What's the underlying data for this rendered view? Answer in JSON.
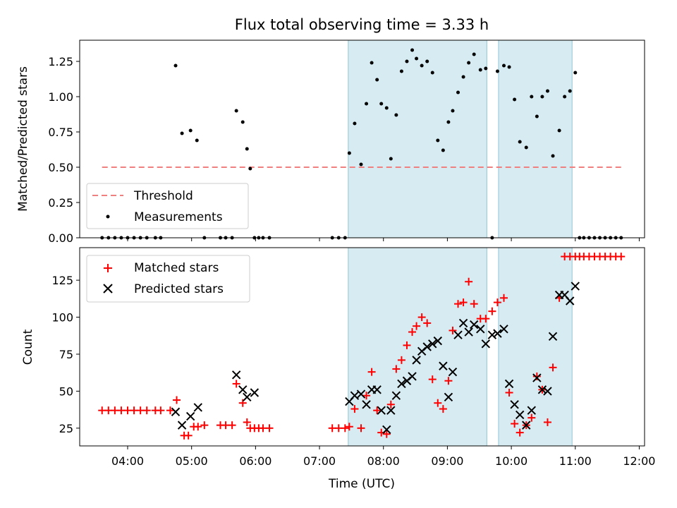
{
  "figure_title": "Flux total observing time = 3.33 h",
  "chart_data": [
    {
      "type": "scatter",
      "title": "Flux total observing time = 3.33 h",
      "ylabel": "Matched/Predicted stars",
      "xlim": [
        "03:15",
        "12:05"
      ],
      "ylim": [
        0,
        1.4
      ],
      "y_ticks": [
        0.0,
        0.25,
        0.5,
        0.75,
        1.0,
        1.25
      ],
      "y_tick_labels": [
        "0.00",
        "0.25",
        "0.50",
        "0.75",
        "1.00",
        "1.25"
      ],
      "shaded_intervals": [
        [
          "07:27",
          "09:37"
        ],
        [
          "09:48",
          "10:57"
        ]
      ],
      "legend": {
        "position": "lower left",
        "entries": [
          "Threshold",
          "Measurements"
        ]
      },
      "threshold": {
        "name": "Threshold",
        "value": 0.5,
        "x_range": [
          "03:36",
          "11:43"
        ],
        "color": "#f08080"
      },
      "series": [
        {
          "name": "Measurements",
          "color": "#000000",
          "x": [
            "03:36",
            "03:42",
            "03:48",
            "03:54",
            "04:00",
            "04:06",
            "04:12",
            "04:18",
            "04:26",
            "04:31",
            "04:45",
            "04:51",
            "04:59",
            "05:05",
            "05:12",
            "05:27",
            "05:32",
            "05:38",
            "05:42",
            "05:48",
            "05:52",
            "05:55",
            "05:59",
            "06:03",
            "06:07",
            "06:13",
            "07:12",
            "07:18",
            "07:24",
            "07:28",
            "07:33",
            "07:39",
            "07:44",
            "07:49",
            "07:54",
            "07:58",
            "08:03",
            "08:07",
            "08:12",
            "08:17",
            "08:22",
            "08:27",
            "08:31",
            "08:36",
            "08:41",
            "08:46",
            "08:51",
            "08:56",
            "09:01",
            "09:05",
            "09:10",
            "09:15",
            "09:20",
            "09:25",
            "09:31",
            "09:36",
            "09:42",
            "09:47",
            "09:53",
            "09:58",
            "10:03",
            "10:08",
            "10:14",
            "10:19",
            "10:24",
            "10:29",
            "10:34",
            "10:39",
            "10:45",
            "10:50",
            "10:55",
            "11:00",
            "11:04",
            "11:08",
            "11:13",
            "11:18",
            "11:23",
            "11:28",
            "11:33",
            "11:38",
            "11:43"
          ],
          "y": [
            0,
            0,
            0,
            0,
            0,
            0,
            0,
            0,
            0,
            0,
            1.22,
            0.74,
            0.76,
            0.69,
            0,
            0,
            0,
            0,
            0.9,
            0.82,
            0.63,
            0.49,
            0,
            0,
            0,
            0,
            0,
            0,
            0,
            0.6,
            0.81,
            0.52,
            0.95,
            1.24,
            1.12,
            0.95,
            0.92,
            0.56,
            0.87,
            1.18,
            1.25,
            1.33,
            1.27,
            1.22,
            1.25,
            1.17,
            0.69,
            0.62,
            0.82,
            0.9,
            1.03,
            1.14,
            1.24,
            1.3,
            1.19,
            1.2,
            0,
            1.18,
            1.22,
            1.21,
            0.98,
            0.68,
            0.64,
            1.0,
            0.86,
            1.0,
            1.04,
            0.58,
            0.76,
            1.0,
            1.04,
            1.17,
            0,
            0,
            0,
            0,
            0,
            0,
            0,
            0,
            0
          ]
        }
      ]
    },
    {
      "type": "scatter",
      "xlabel": "Time (UTC)",
      "ylabel": "Count",
      "xlim": [
        "03:15",
        "12:05"
      ],
      "ylim": [
        13,
        147
      ],
      "x_ticks": [
        "04:00",
        "05:00",
        "06:00",
        "07:00",
        "08:00",
        "09:00",
        "10:00",
        "11:00",
        "12:00"
      ],
      "y_ticks": [
        25,
        50,
        75,
        100,
        125
      ],
      "shaded_intervals": [
        [
          "07:27",
          "09:37"
        ],
        [
          "09:48",
          "10:57"
        ]
      ],
      "legend": {
        "position": "upper left",
        "entries": [
          "Matched stars",
          "Predicted stars"
        ]
      },
      "series": [
        {
          "name": "Matched stars",
          "marker": "+",
          "color": "#ff0000",
          "x": [
            "03:36",
            "03:42",
            "03:48",
            "03:54",
            "04:00",
            "04:06",
            "04:12",
            "04:18",
            "04:26",
            "04:31",
            "04:40",
            "04:46",
            "04:53",
            "04:57",
            "05:02",
            "05:06",
            "05:12",
            "05:27",
            "05:32",
            "05:38",
            "05:42",
            "05:48",
            "05:52",
            "05:55",
            "05:59",
            "06:03",
            "06:07",
            "06:13",
            "07:12",
            "07:18",
            "07:24",
            "07:28",
            "07:33",
            "07:39",
            "07:44",
            "07:49",
            "07:54",
            "07:58",
            "08:03",
            "08:07",
            "08:12",
            "08:17",
            "08:22",
            "08:27",
            "08:31",
            "08:36",
            "08:41",
            "08:46",
            "08:51",
            "08:56",
            "09:01",
            "09:05",
            "09:10",
            "09:15",
            "09:20",
            "09:25",
            "09:31",
            "09:36",
            "09:42",
            "09:47",
            "09:53",
            "09:58",
            "10:03",
            "10:08",
            "10:14",
            "10:19",
            "10:24",
            "10:29",
            "10:34",
            "10:39",
            "10:45",
            "10:50",
            "10:55",
            "11:00",
            "11:04",
            "11:08",
            "11:13",
            "11:18",
            "11:23",
            "11:28",
            "11:33",
            "11:38",
            "11:43"
          ],
          "y": [
            37,
            37,
            37,
            37,
            37,
            37,
            37,
            37,
            37,
            37,
            37,
            44,
            20,
            20,
            26,
            26,
            27,
            27,
            27,
            27,
            55,
            42,
            29,
            25,
            25,
            25,
            25,
            25,
            25,
            25,
            25,
            26,
            38,
            25,
            47,
            63,
            37,
            22,
            21,
            41,
            65,
            71,
            81,
            90,
            94,
            100,
            96,
            58,
            42,
            38,
            57,
            91,
            109,
            110,
            124,
            109,
            99,
            99,
            104,
            110,
            113,
            49,
            28,
            22,
            27,
            32,
            60,
            51,
            29,
            66,
            113,
            141,
            141,
            141,
            141,
            141,
            141,
            141,
            141,
            141,
            141,
            141,
            141
          ]
        },
        {
          "name": "Predicted stars",
          "marker": "x",
          "color": "#000000",
          "x": [
            "04:45",
            "04:51",
            "04:59",
            "05:06",
            "05:42",
            "05:48",
            "05:52",
            "05:59",
            "07:28",
            "07:33",
            "07:39",
            "07:44",
            "07:49",
            "07:54",
            "07:58",
            "08:03",
            "08:07",
            "08:12",
            "08:17",
            "08:22",
            "08:27",
            "08:31",
            "08:36",
            "08:41",
            "08:46",
            "08:51",
            "08:56",
            "09:01",
            "09:05",
            "09:10",
            "09:15",
            "09:20",
            "09:25",
            "09:31",
            "09:36",
            "09:42",
            "09:47",
            "09:53",
            "09:58",
            "10:03",
            "10:08",
            "10:14",
            "10:19",
            "10:24",
            "10:29",
            "10:34",
            "10:39",
            "10:45",
            "10:50",
            "10:55",
            "11:00"
          ],
          "y": [
            36,
            27,
            33,
            39,
            61,
            51,
            46,
            49,
            43,
            47,
            48,
            41,
            51,
            51,
            37,
            24,
            37,
            47,
            55,
            57,
            60,
            71,
            77,
            80,
            82,
            84,
            67,
            46,
            63,
            88,
            96,
            90,
            95,
            92,
            82,
            88,
            89,
            92,
            55,
            41,
            34,
            27,
            37,
            59,
            51,
            50,
            87,
            115,
            115,
            111,
            121
          ]
        }
      ]
    }
  ]
}
